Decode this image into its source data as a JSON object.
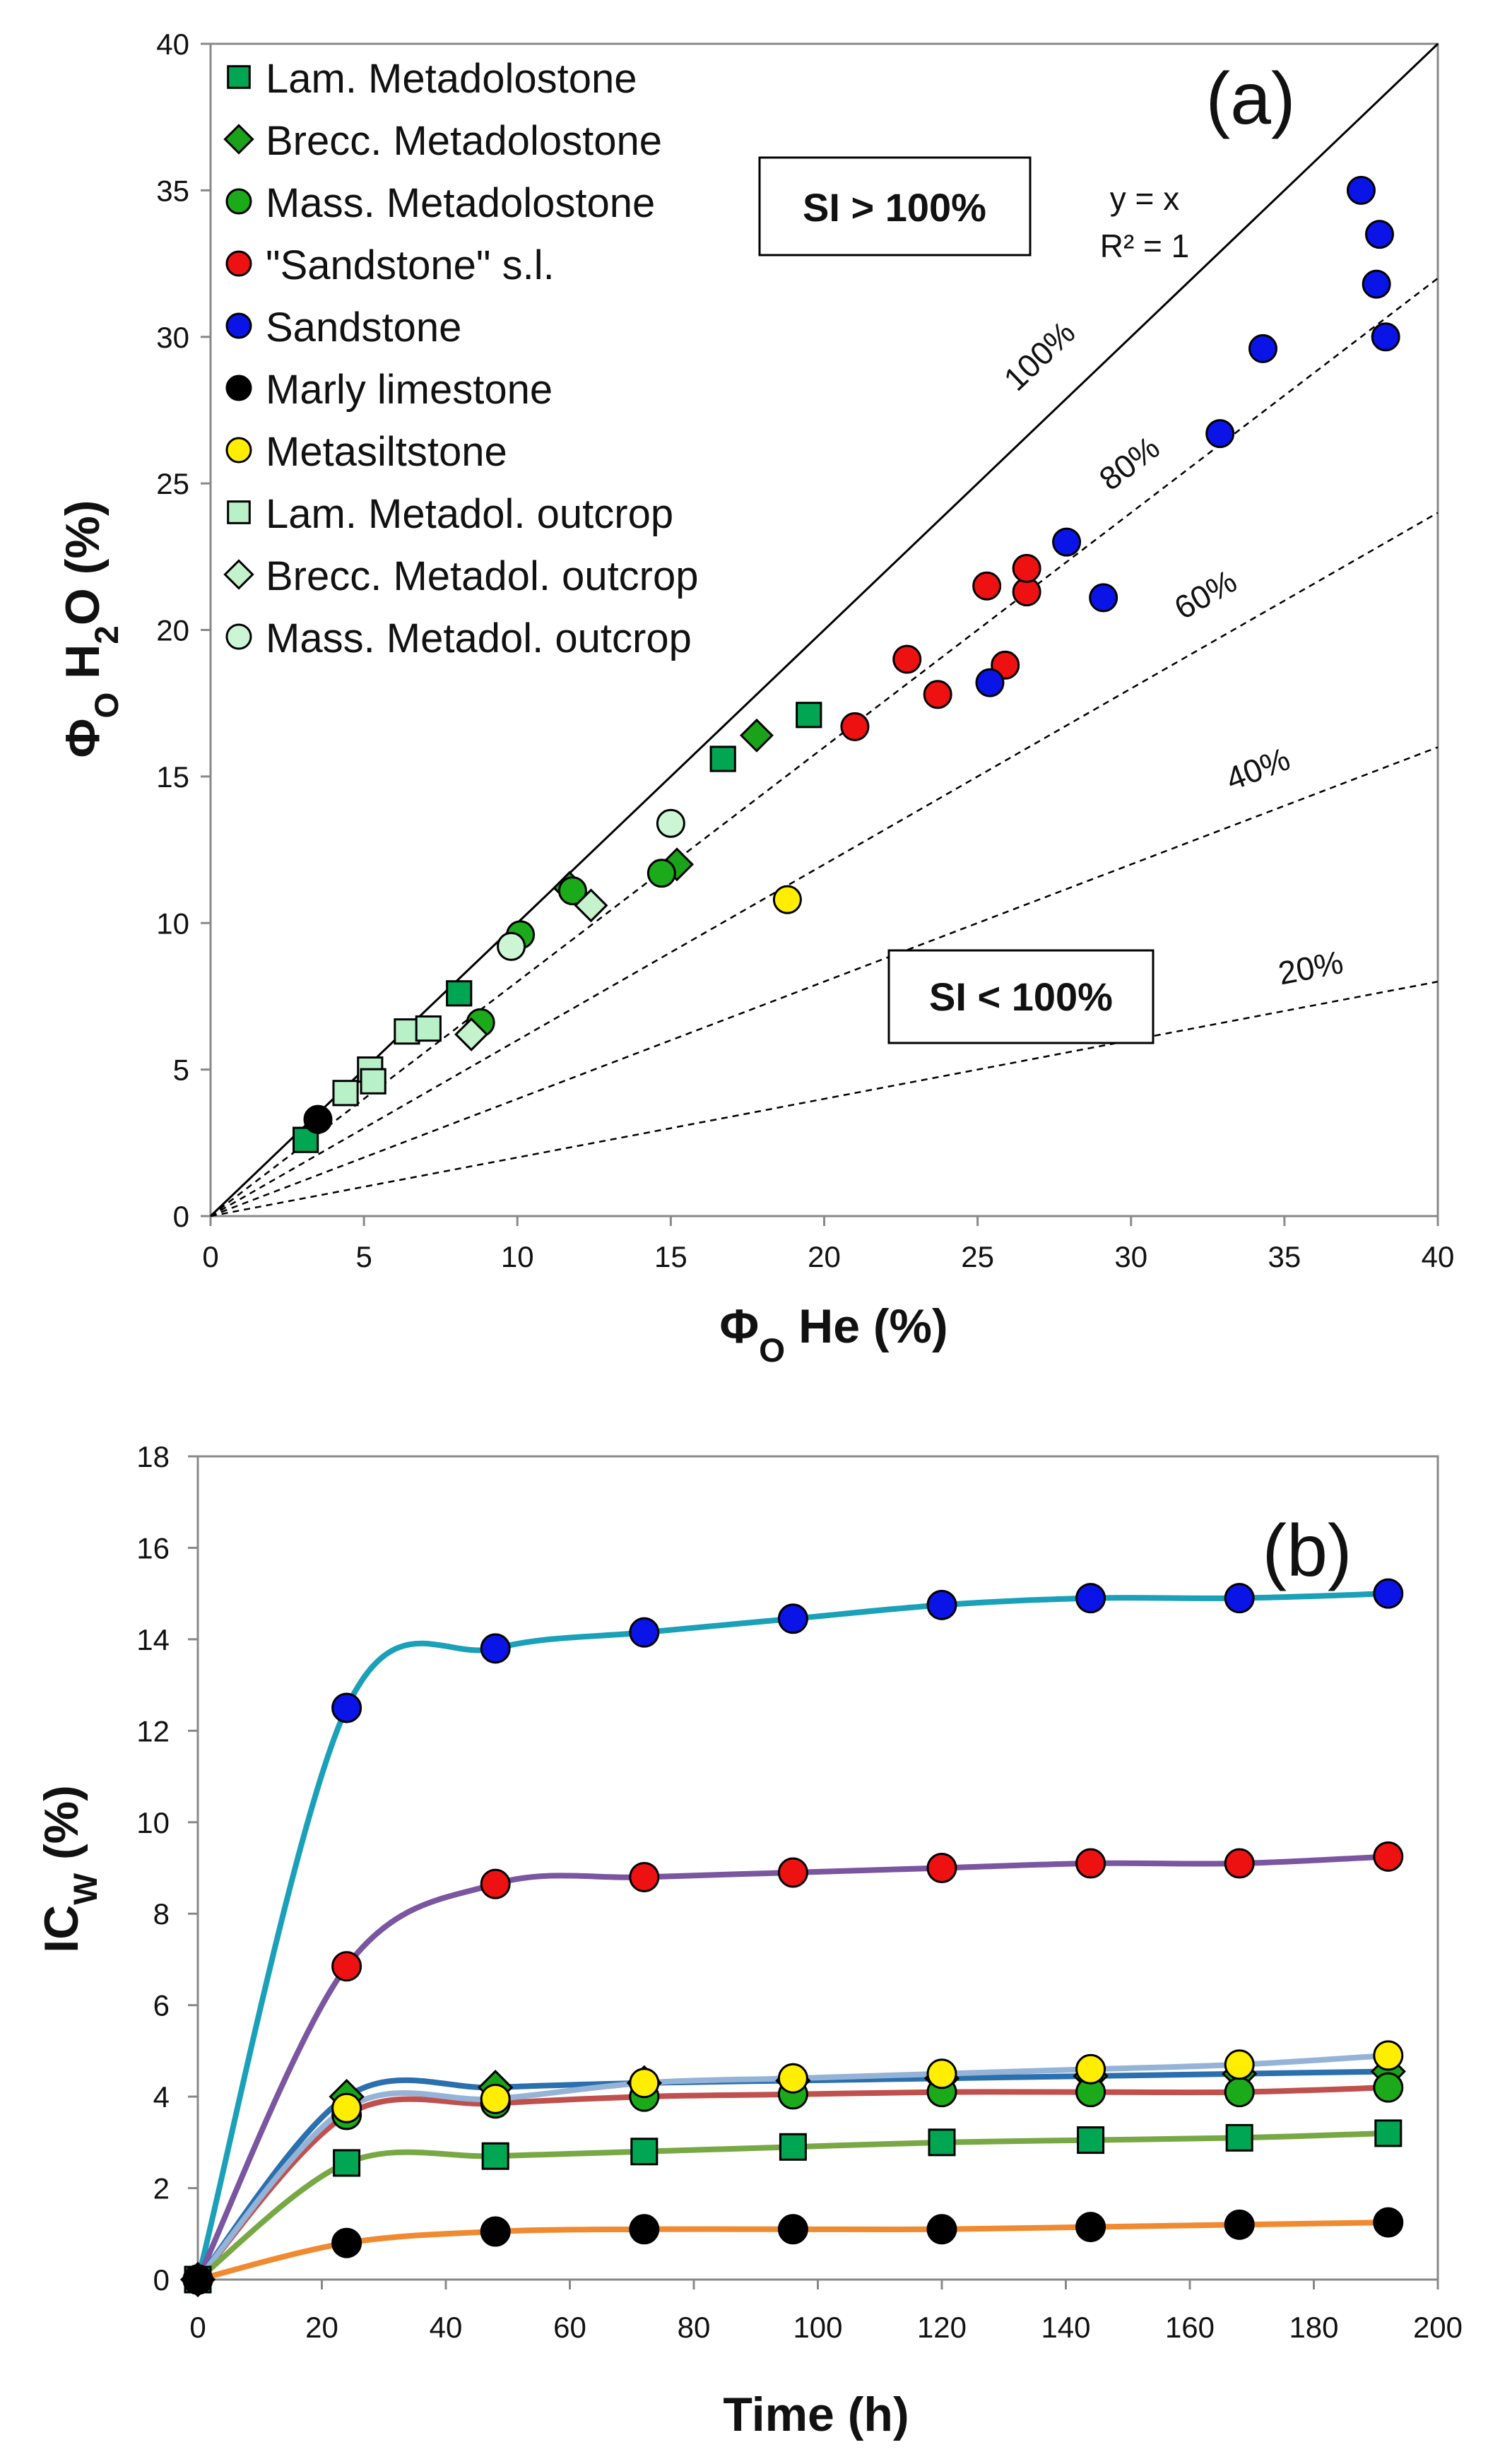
{
  "chart_data": [
    {
      "type": "scatter",
      "panel_label": "(a)",
      "xlabel": [
        {
          "t": "Φ"
        },
        {
          "t": "O",
          "sub": true
        },
        {
          "t": " He (%)"
        }
      ],
      "ylabel": [
        {
          "t": "Φ"
        },
        {
          "t": "O",
          "sub": true
        },
        {
          "t": " H"
        },
        {
          "t": "2",
          "sub": true
        },
        {
          "t": "O (%)"
        }
      ],
      "xlim": [
        0,
        40
      ],
      "ylim": [
        0,
        40
      ],
      "xticks": [
        "0",
        "5",
        "10",
        "15",
        "20",
        "25",
        "30",
        "35",
        "40"
      ],
      "yticks": [
        "0",
        "5",
        "10",
        "15",
        "20",
        "25",
        "30",
        "35",
        "40"
      ],
      "grid": false,
      "legend_position": "top-left",
      "annotations": {
        "si_high": "SI > 100%",
        "si_low": "SI < 100%",
        "eq1": "y = x",
        "eq2": "R² = 1"
      },
      "ref_lines": [
        {
          "slope": 1.0,
          "label": "100%",
          "style": "solid"
        },
        {
          "slope": 0.8,
          "label": "80%",
          "style": "dashed"
        },
        {
          "slope": 0.6,
          "label": "60%",
          "style": "dashed"
        },
        {
          "slope": 0.4,
          "label": "40%",
          "style": "dashed"
        },
        {
          "slope": 0.2,
          "label": "20%",
          "style": "dashed"
        }
      ],
      "series": [
        {
          "name": "Lam. Metadolostone",
          "marker": "square",
          "color": "#00a651",
          "points": [
            [
              3.1,
              2.6
            ],
            [
              8.1,
              7.6
            ],
            [
              16.7,
              15.6
            ],
            [
              19.5,
              17.1
            ]
          ]
        },
        {
          "name": "Brecc. Metadolostone",
          "marker": "diamond",
          "color": "#1aa31a",
          "points": [
            [
              11.7,
              11.2
            ],
            [
              15.2,
              12.0
            ],
            [
              17.8,
              16.4
            ]
          ]
        },
        {
          "name": "Mass. Metadolostone",
          "marker": "circle",
          "color": "#1aaa1a",
          "points": [
            [
              8.8,
              6.6
            ],
            [
              10.1,
              9.6
            ],
            [
              11.8,
              11.1
            ],
            [
              14.7,
              11.7
            ]
          ]
        },
        {
          "name": "\"Sandstone\" s.l.",
          "marker": "circle",
          "color": "#ee1111",
          "points": [
            [
              21.0,
              16.7
            ],
            [
              22.7,
              19.0
            ],
            [
              23.7,
              17.8
            ],
            [
              25.3,
              21.5
            ],
            [
              25.9,
              18.8
            ],
            [
              26.6,
              21.3
            ],
            [
              26.6,
              22.1
            ]
          ]
        },
        {
          "name": "Sandstone",
          "marker": "circle",
          "color": "#0a14e6",
          "points": [
            [
              25.4,
              18.2
            ],
            [
              27.9,
              23.0
            ],
            [
              29.1,
              21.1
            ],
            [
              32.9,
              26.7
            ],
            [
              34.3,
              29.6
            ],
            [
              37.5,
              35.0
            ],
            [
              38.1,
              33.5
            ],
            [
              38.0,
              31.8
            ],
            [
              38.3,
              30.0
            ]
          ]
        },
        {
          "name": "Marly limestone",
          "marker": "circle",
          "color": "#000000",
          "points": [
            [
              3.5,
              3.3
            ]
          ]
        },
        {
          "name": "Metasiltstone",
          "marker": "circle",
          "color": "#ffee00",
          "points": [
            [
              18.8,
              10.8
            ]
          ]
        },
        {
          "name": "Lam. Metadol. outcrop",
          "marker": "square",
          "color": "#b8f0c8",
          "points": [
            [
              4.4,
              4.2
            ],
            [
              5.2,
              5.0
            ],
            [
              5.3,
              4.6
            ],
            [
              6.4,
              6.3
            ],
            [
              7.1,
              6.4
            ]
          ]
        },
        {
          "name": "Brecc. Metadol. outcrop",
          "marker": "diamond",
          "color": "#c4f2cc",
          "points": [
            [
              8.5,
              6.2
            ],
            [
              12.4,
              10.6
            ]
          ]
        },
        {
          "name": "Mass. Metadol. outcrop",
          "marker": "circle",
          "color": "#ccf5d6",
          "points": [
            [
              9.8,
              9.2
            ],
            [
              15.0,
              13.4
            ]
          ]
        }
      ]
    },
    {
      "type": "line",
      "panel_label": "(b)",
      "xlabel": [
        {
          "t": "Time (h)"
        }
      ],
      "ylabel": [
        {
          "t": "IC"
        },
        {
          "t": "W",
          "sub": true
        },
        {
          "t": " (%)"
        }
      ],
      "xlim": [
        0,
        200
      ],
      "ylim": [
        0,
        18
      ],
      "xticks": [
        "0",
        "20",
        "40",
        "60",
        "80",
        "100",
        "120",
        "140",
        "160",
        "180",
        "200"
      ],
      "yticks": [
        "0",
        "2",
        "4",
        "6",
        "8",
        "10",
        "12",
        "14",
        "16",
        "18"
      ],
      "grid": false,
      "x": [
        0,
        24,
        48,
        72,
        96,
        120,
        144,
        168,
        192
      ],
      "series": [
        {
          "name": "Sandstone",
          "marker": "circle",
          "color": "#0a14e6",
          "line_color": "#1aa0b8",
          "values": [
            0,
            12.5,
            13.8,
            14.15,
            14.45,
            14.75,
            14.9,
            14.9,
            15.0
          ]
        },
        {
          "name": "\"Sandstone\" s.l.",
          "marker": "circle",
          "color": "#ee1111",
          "line_color": "#7a55a0",
          "values": [
            0,
            6.85,
            8.65,
            8.8,
            8.9,
            9.0,
            9.1,
            9.1,
            9.25
          ]
        },
        {
          "name": "Brecc. Metadolostone",
          "marker": "diamond",
          "color": "#1aa31a",
          "line_color": "#2a6fae",
          "values": [
            0,
            4.0,
            4.2,
            4.3,
            4.35,
            4.4,
            4.45,
            4.5,
            4.55
          ]
        },
        {
          "name": "Mass. Metadolostone",
          "marker": "circle",
          "color": "#1aaa1a",
          "line_color": "#c0504d",
          "values": [
            0,
            3.6,
            3.85,
            4.0,
            4.05,
            4.1,
            4.1,
            4.1,
            4.2
          ]
        },
        {
          "name": "Metasiltstone",
          "marker": "circle",
          "color": "#ffee00",
          "line_color": "#95b3d7",
          "values": [
            0,
            3.75,
            3.95,
            4.3,
            4.4,
            4.5,
            4.6,
            4.7,
            4.9
          ]
        },
        {
          "name": "Lam. Metadolostone",
          "marker": "square",
          "color": "#00a651",
          "line_color": "#77a844",
          "values": [
            0,
            2.55,
            2.7,
            2.8,
            2.9,
            3.0,
            3.05,
            3.1,
            3.2
          ]
        },
        {
          "name": "Marly limestone",
          "marker": "circle",
          "color": "#000000",
          "line_color": "#f08a30",
          "values": [
            0,
            0.8,
            1.05,
            1.1,
            1.1,
            1.1,
            1.15,
            1.2,
            1.25
          ]
        }
      ]
    }
  ]
}
